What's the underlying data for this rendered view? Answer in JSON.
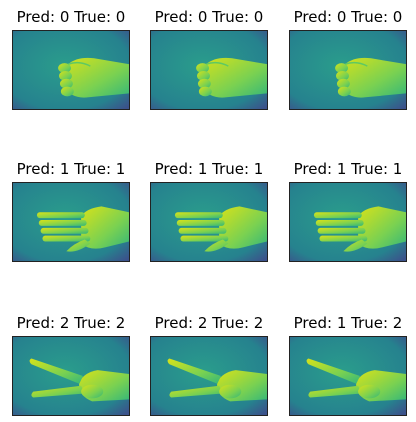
{
  "figure": {
    "panels": [
      {
        "title": "Pred: 0 True: 0",
        "gesture": "rock"
      },
      {
        "title": "Pred: 0 True: 0",
        "gesture": "rock"
      },
      {
        "title": "Pred: 0 True: 0",
        "gesture": "rock"
      },
      {
        "title": "Pred: 1 True: 1",
        "gesture": "paper"
      },
      {
        "title": "Pred: 1 True: 1",
        "gesture": "paper"
      },
      {
        "title": "Pred: 1 True: 1",
        "gesture": "paper"
      },
      {
        "title": "Pred: 2 True: 2",
        "gesture": "scissors"
      },
      {
        "title": "Pred: 2 True: 2",
        "gesture": "scissors"
      },
      {
        "title": "Pred: 1 True: 2",
        "gesture": "scissors"
      }
    ],
    "colors": {
      "background_teal": "#2a9d8c",
      "background_dark": "#3b528b",
      "hand_green": "#7ad151",
      "hand_yellow": "#d8e219",
      "frame": "#222222"
    }
  }
}
